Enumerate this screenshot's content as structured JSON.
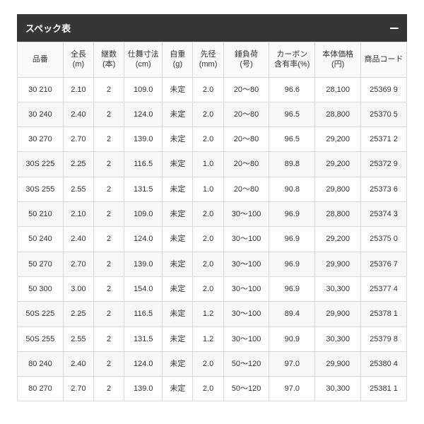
{
  "panel": {
    "title": "スペック表"
  },
  "table": {
    "columns": [
      {
        "label": "品番",
        "widthClass": "col-0"
      },
      {
        "label": "全長\n(m)",
        "widthClass": "col-1"
      },
      {
        "label": "継数\n(本)",
        "widthClass": "col-2"
      },
      {
        "label": "仕舞寸法\n(cm)",
        "widthClass": "col-3"
      },
      {
        "label": "自重\n(g)",
        "widthClass": "col-4"
      },
      {
        "label": "先径\n(mm)",
        "widthClass": "col-5"
      },
      {
        "label": "錘負荷\n(号)",
        "widthClass": "col-6"
      },
      {
        "label": "カーボン\n含有率(%)",
        "widthClass": "col-7"
      },
      {
        "label": "本体価格(円)",
        "widthClass": "col-8"
      },
      {
        "label": "商品コード",
        "widthClass": "col-9"
      }
    ],
    "rows": [
      [
        "30 210",
        "2.10",
        "2",
        "109.0",
        "未定",
        "2.0",
        "20～80",
        "96.6",
        "28,100",
        "25369 9"
      ],
      [
        "30 240",
        "2.40",
        "2",
        "124.0",
        "未定",
        "2.0",
        "20～80",
        "96.5",
        "28,800",
        "25370 5"
      ],
      [
        "30 270",
        "2.70",
        "2",
        "139.0",
        "未定",
        "2.0",
        "20～80",
        "96.5",
        "29,200",
        "25371 2"
      ],
      [
        "30S 225",
        "2.25",
        "2",
        "116.5",
        "未定",
        "1.0",
        "20～80",
        "89.8",
        "29,200",
        "25372 9"
      ],
      [
        "30S 255",
        "2.55",
        "2",
        "131.5",
        "未定",
        "1.0",
        "20～80",
        "90.8",
        "29,800",
        "25373 6"
      ],
      [
        "50 210",
        "2.10",
        "2",
        "109.0",
        "未定",
        "2.0",
        "30～100",
        "96.9",
        "28,800",
        "25374 3"
      ],
      [
        "50 240",
        "2.40",
        "2",
        "124.0",
        "未定",
        "2.0",
        "30～100",
        "96.9",
        "29,200",
        "25375 0"
      ],
      [
        "50 270",
        "2.70",
        "2",
        "139.0",
        "未定",
        "2.0",
        "30～100",
        "96.9",
        "29,900",
        "25376 7"
      ],
      [
        "50 300",
        "3.00",
        "2",
        "154.0",
        "未定",
        "2.0",
        "30～100",
        "96.9",
        "30,300",
        "25377 4"
      ],
      [
        "50S 225",
        "2.25",
        "2",
        "116.5",
        "未定",
        "1.2",
        "30～100",
        "89.4",
        "29,900",
        "25378 1"
      ],
      [
        "50S 255",
        "2.55",
        "2",
        "131.5",
        "未定",
        "1.2",
        "30～100",
        "90.9",
        "30,300",
        "25379 8"
      ],
      [
        "80 240",
        "2.40",
        "2",
        "124.0",
        "未定",
        "2.0",
        "50～120",
        "97.0",
        "29,900",
        "25380 4"
      ],
      [
        "80 270",
        "2.70",
        "2",
        "139.0",
        "未定",
        "2.0",
        "50～120",
        "97.0",
        "30,300",
        "25381 1"
      ]
    ],
    "header_bg": "#fafafa",
    "row_even_bg": "#f7f7f7",
    "row_odd_bg": "#ffffff",
    "border_color": "#d9d9d9",
    "panel_bg": "#363636"
  }
}
